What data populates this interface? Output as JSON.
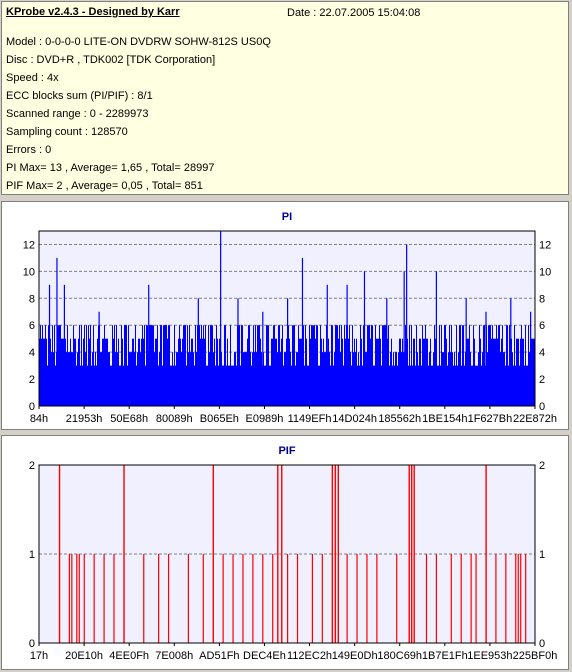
{
  "header": {
    "app_title": "KProbe v2.4.3 - Designed by Karr",
    "date": "Date : 22.07.2005 15:04:08"
  },
  "info_lines": [
    "Model : 0-0-0-0 LITE-ON DVDRW SOHW-812S  US0Q",
    "Disc : DVD+R , TDK002 [TDK Corporation]",
    "Speed : 4x",
    "ECC blocks sum (PI/PIF) : 8/1",
    "Scanned range : 0 - 2289973",
    "Sampling count : 128570",
    "Errors : 0",
    "PI Max= 13 , Average= 1,65 , Total= 28997",
    "PIF Max= 2 , Average= 0,05 , Total= 851"
  ],
  "chart_data": [
    {
      "type": "bar",
      "title": "PI",
      "ylim": [
        0,
        13
      ],
      "yticks": [
        0,
        2,
        4,
        6,
        8,
        10,
        12
      ],
      "x_ticks": [
        "84h",
        "21953h",
        "50E68h",
        "80089h",
        "B065Eh",
        "E0989h",
        "1149EFh",
        "14D024h",
        "185562h",
        "1BE154h",
        "1F627Bh",
        "22E872h"
      ],
      "grid": true,
      "color": "#0000ff",
      "baseline_range": [
        3,
        6
      ],
      "spikes": [
        {
          "pos": 0.02,
          "value": 9
        },
        {
          "pos": 0.035,
          "value": 11
        },
        {
          "pos": 0.05,
          "value": 9
        },
        {
          "pos": 0.12,
          "value": 7
        },
        {
          "pos": 0.22,
          "value": 9
        },
        {
          "pos": 0.255,
          "value": 6
        },
        {
          "pos": 0.32,
          "value": 8
        },
        {
          "pos": 0.365,
          "value": 13
        },
        {
          "pos": 0.4,
          "value": 8
        },
        {
          "pos": 0.45,
          "value": 7
        },
        {
          "pos": 0.5,
          "value": 8
        },
        {
          "pos": 0.53,
          "value": 11
        },
        {
          "pos": 0.58,
          "value": 9
        },
        {
          "pos": 0.62,
          "value": 9
        },
        {
          "pos": 0.655,
          "value": 10
        },
        {
          "pos": 0.7,
          "value": 8
        },
        {
          "pos": 0.735,
          "value": 10
        },
        {
          "pos": 0.74,
          "value": 12
        },
        {
          "pos": 0.8,
          "value": 10
        },
        {
          "pos": 0.86,
          "value": 8
        },
        {
          "pos": 0.9,
          "value": 7
        },
        {
          "pos": 0.95,
          "value": 8
        },
        {
          "pos": 0.99,
          "value": 7
        }
      ]
    },
    {
      "type": "bar",
      "title": "PIF",
      "ylim": [
        0,
        2
      ],
      "yticks": [
        0,
        1,
        2
      ],
      "x_ticks": [
        "17h",
        "20E10h",
        "4EE0Fh",
        "7E008h",
        "AD51Fh",
        "DEC4Eh",
        "112EC2h",
        "149E0Dh",
        "180C69h",
        "1B7E1Fh",
        "1EE953h",
        "225BF0h"
      ],
      "grid": true,
      "color": "#ff0000",
      "bars_value_2": [
        0.04,
        0.17,
        0.35,
        0.48,
        0.488,
        0.59,
        0.596,
        0.602,
        0.745,
        0.75,
        0.755,
        0.9
      ],
      "bars_value_1": [
        0.06,
        0.065,
        0.075,
        0.08,
        0.09,
        0.11,
        0.13,
        0.15,
        0.21,
        0.24,
        0.26,
        0.3,
        0.33,
        0.37,
        0.39,
        0.41,
        0.43,
        0.45,
        0.47,
        0.5,
        0.52,
        0.55,
        0.57,
        0.62,
        0.64,
        0.66,
        0.68,
        0.72,
        0.78,
        0.8,
        0.83,
        0.85,
        0.87,
        0.88,
        0.92,
        0.94,
        0.96,
        0.965,
        0.97,
        0.98
      ]
    }
  ]
}
